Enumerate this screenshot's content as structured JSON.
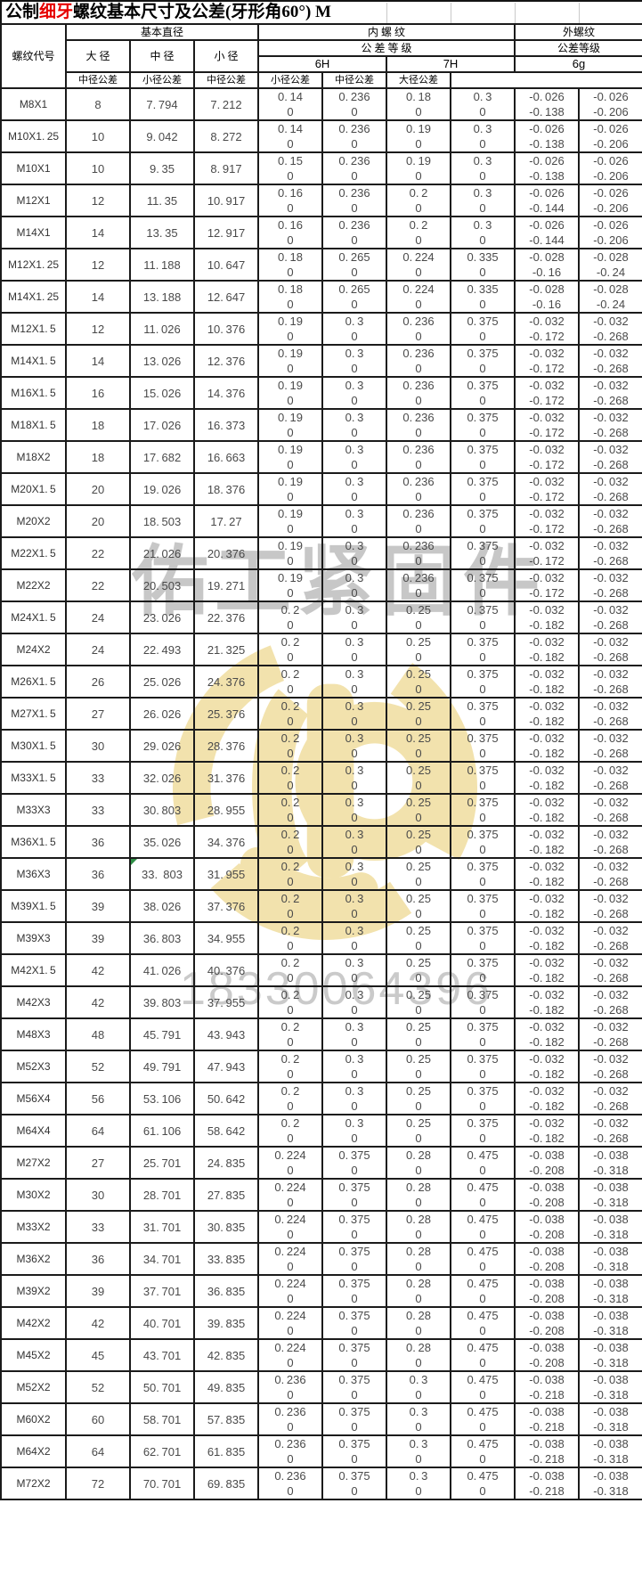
{
  "title": {
    "part1": "公制",
    "em": "细牙",
    "part2": "螺纹基本尺寸及公差(牙形角60°) M"
  },
  "watermarks": {
    "company": "佑工紧固件",
    "phone": "18330064396",
    "logo_color": "#f1dfa2"
  },
  "colors": {
    "title_highlight": "#e60000",
    "grid_line": "#1b1b1b",
    "data_text": "#4a4a4a",
    "comment_marker_green": "#2f8f46"
  },
  "header": {
    "thread_code": "螺纹代号",
    "basic_diameter": "基本直径",
    "major": "大 径",
    "pitch": "中 径",
    "minor": "小 径",
    "internal": "内 螺 纹",
    "internal_grade": "公 差 等 级",
    "h6": "6H",
    "h7": "7H",
    "external": "外螺纹",
    "external_grade": "公差等级",
    "g6": "6g",
    "pitch_tol": "中径公差",
    "minor_tol": "小径公差",
    "major_tol": "大径公差"
  },
  "table": {
    "constants": {
      "internal_lower": "0"
    },
    "special": {
      "green_marker_row": 24,
      "green_marker_col": 2
    },
    "rows": [
      [
        "M8X1",
        "8",
        "7.794",
        "7.212",
        "0.14",
        "0.236",
        "0.18",
        "0.3",
        "-0.026",
        "-0.138",
        "-0.026",
        "-0.206"
      ],
      [
        "M10X1.25",
        "10",
        "9.042",
        "8.272",
        "0.14",
        "0.236",
        "0.19",
        "0.3",
        "-0.026",
        "-0.138",
        "-0.026",
        "-0.206"
      ],
      [
        "M10X1",
        "10",
        "9.35",
        "8.917",
        "0.15",
        "0.236",
        "0.19",
        "0.3",
        "-0.026",
        "-0.138",
        "-0.026",
        "-0.206"
      ],
      [
        "M12X1",
        "12",
        "11.35",
        "10.917",
        "0.16",
        "0.236",
        "0.2",
        "0.3",
        "-0.026",
        "-0.144",
        "-0.026",
        "-0.206"
      ],
      [
        "M14X1",
        "14",
        "13.35",
        "12.917",
        "0.16",
        "0.236",
        "0.2",
        "0.3",
        "-0.026",
        "-0.144",
        "-0.026",
        "-0.206"
      ],
      [
        "M12X1.25",
        "12",
        "11.188",
        "10.647",
        "0.18",
        "0.265",
        "0.224",
        "0.335",
        "-0.028",
        "-0.16",
        "-0.028",
        "-0.24"
      ],
      [
        "M14X1.25",
        "14",
        "13.188",
        "12.647",
        "0.18",
        "0.265",
        "0.224",
        "0.335",
        "-0.028",
        "-0.16",
        "-0.028",
        "-0.24"
      ],
      [
        "M12X1.5",
        "12",
        "11.026",
        "10.376",
        "0.19",
        "0.3",
        "0.236",
        "0.375",
        "-0.032",
        "-0.172",
        "-0.032",
        "-0.268"
      ],
      [
        "M14X1.5",
        "14",
        "13.026",
        "12.376",
        "0.19",
        "0.3",
        "0.236",
        "0.375",
        "-0.032",
        "-0.172",
        "-0.032",
        "-0.268"
      ],
      [
        "M16X1.5",
        "16",
        "15.026",
        "14.376",
        "0.19",
        "0.3",
        "0.236",
        "0.375",
        "-0.032",
        "-0.172",
        "-0.032",
        "-0.268"
      ],
      [
        "M18X1.5",
        "18",
        "17.026",
        "16.373",
        "0.19",
        "0.3",
        "0.236",
        "0.375",
        "-0.032",
        "-0.172",
        "-0.032",
        "-0.268"
      ],
      [
        "M18X2",
        "18",
        "17.682",
        "16.663",
        "0.19",
        "0.3",
        "0.236",
        "0.375",
        "-0.032",
        "-0.172",
        "-0.032",
        "-0.268"
      ],
      [
        "M20X1.5",
        "20",
        "19.026",
        "18.376",
        "0.19",
        "0.3",
        "0.236",
        "0.375",
        "-0.032",
        "-0.172",
        "-0.032",
        "-0.268"
      ],
      [
        "M20X2",
        "20",
        "18.503",
        "17.27",
        "0.19",
        "0.3",
        "0.236",
        "0.375",
        "-0.032",
        "-0.172",
        "-0.032",
        "-0.268"
      ],
      [
        "M22X1.5",
        "22",
        "21.026",
        "20.376",
        "0.19",
        "0.3",
        "0.236",
        "0.375",
        "-0.032",
        "-0.172",
        "-0.032",
        "-0.268"
      ],
      [
        "M22X2",
        "22",
        "20.503",
        "19.271",
        "0.19",
        "0.3",
        "0.236",
        "0.375",
        "-0.032",
        "-0.172",
        "-0.032",
        "-0.268"
      ],
      [
        "M24X1.5",
        "24",
        "23.026",
        "22.376",
        "0.2",
        "0.3",
        "0.25",
        "0.375",
        "-0.032",
        "-0.182",
        "-0.032",
        "-0.268"
      ],
      [
        "M24X2",
        "24",
        "22.493",
        "21.325",
        "0.2",
        "0.3",
        "0.25",
        "0.375",
        "-0.032",
        "-0.182",
        "-0.032",
        "-0.268"
      ],
      [
        "M26X1.5",
        "26",
        "25.026",
        "24.376",
        "0.2",
        "0.3",
        "0.25",
        "0.375",
        "-0.032",
        "-0.182",
        "-0.032",
        "-0.268"
      ],
      [
        "M27X1.5",
        "27",
        "26.026",
        "25.376",
        "0.2",
        "0.3",
        "0.25",
        "0.375",
        "-0.032",
        "-0.182",
        "-0.032",
        "-0.268"
      ],
      [
        "M30X1.5",
        "30",
        "29.026",
        "28.376",
        "0.2",
        "0.3",
        "0.25",
        "0.375",
        "-0.032",
        "-0.182",
        "-0.032",
        "-0.268"
      ],
      [
        "M33X1.5",
        "33",
        "32.026",
        "31.376",
        "0.2",
        "0.3",
        "0.25",
        "0.375",
        "-0.032",
        "-0.182",
        "-0.032",
        "-0.268"
      ],
      [
        "M33X3",
        "33",
        "30.803",
        "28.955",
        "0.2",
        "0.3",
        "0.25",
        "0.375",
        "-0.032",
        "-0.182",
        "-0.032",
        "-0.268"
      ],
      [
        "M36X1.5",
        "36",
        "35.026",
        "34.376",
        "0.2",
        "0.3",
        "0.25",
        "0.375",
        "-0.032",
        "-0.182",
        "-0.032",
        "-0.268"
      ],
      [
        "M36X3",
        "36",
        "33. 803",
        "31.955",
        "0.2",
        "0.3",
        "0.25",
        "0.375",
        "-0.032",
        "-0.182",
        "-0.032",
        "-0.268"
      ],
      [
        "M39X1.5",
        "39",
        "38.026",
        "37.376",
        "0.2",
        "0.3",
        "0.25",
        "0.375",
        "-0.032",
        "-0.182",
        "-0.032",
        "-0.268"
      ],
      [
        "M39X3",
        "39",
        "36.803",
        "34.955",
        "0.2",
        "0.3",
        "0.25",
        "0.375",
        "-0.032",
        "-0.182",
        "-0.032",
        "-0.268"
      ],
      [
        "M42X1.5",
        "42",
        "41.026",
        "40.376",
        "0.2",
        "0.3",
        "0.25",
        "0.375",
        "-0.032",
        "-0.182",
        "-0.032",
        "-0.268"
      ],
      [
        "M42X3",
        "42",
        "39.803",
        "37.955",
        "0.2",
        "0.3",
        "0.25",
        "0.375",
        "-0.032",
        "-0.182",
        "-0.032",
        "-0.268"
      ],
      [
        "M48X3",
        "48",
        "45.791",
        "43.943",
        "0.2",
        "0.3",
        "0.25",
        "0.375",
        "-0.032",
        "-0.182",
        "-0.032",
        "-0.268"
      ],
      [
        "M52X3",
        "52",
        "49.791",
        "47.943",
        "0.2",
        "0.3",
        "0.25",
        "0.375",
        "-0.032",
        "-0.182",
        "-0.032",
        "-0.268"
      ],
      [
        "M56X4",
        "56",
        "53.106",
        "50.642",
        "0.2",
        "0.3",
        "0.25",
        "0.375",
        "-0.032",
        "-0.182",
        "-0.032",
        "-0.268"
      ],
      [
        "M64X4",
        "64",
        "61.106",
        "58.642",
        "0.2",
        "0.3",
        "0.25",
        "0.375",
        "-0.032",
        "-0.182",
        "-0.032",
        "-0.268"
      ],
      [
        "M27X2",
        "27",
        "25.701",
        "24.835",
        "0.224",
        "0.375",
        "0.28",
        "0.475",
        "-0.038",
        "-0.208",
        "-0.038",
        "-0.318"
      ],
      [
        "M30X2",
        "30",
        "28.701",
        "27.835",
        "0.224",
        "0.375",
        "0.28",
        "0.475",
        "-0.038",
        "-0.208",
        "-0.038",
        "-0.318"
      ],
      [
        "M33X2",
        "33",
        "31.701",
        "30.835",
        "0.224",
        "0.375",
        "0.28",
        "0.475",
        "-0.038",
        "-0.208",
        "-0.038",
        "-0.318"
      ],
      [
        "M36X2",
        "36",
        "34.701",
        "33.835",
        "0.224",
        "0.375",
        "0.28",
        "0.475",
        "-0.038",
        "-0.208",
        "-0.038",
        "-0.318"
      ],
      [
        "M39X2",
        "39",
        "37.701",
        "36.835",
        "0.224",
        "0.375",
        "0.28",
        "0.475",
        "-0.038",
        "-0.208",
        "-0.038",
        "-0.318"
      ],
      [
        "M42X2",
        "42",
        "40.701",
        "39.835",
        "0.224",
        "0.375",
        "0.28",
        "0.475",
        "-0.038",
        "-0.208",
        "-0.038",
        "-0.318"
      ],
      [
        "M45X2",
        "45",
        "43.701",
        "42.835",
        "0.224",
        "0.375",
        "0.28",
        "0.475",
        "-0.038",
        "-0.208",
        "-0.038",
        "-0.318"
      ],
      [
        "M52X2",
        "52",
        "50.701",
        "49.835",
        "0.236",
        "0.375",
        "0.3",
        "0.475",
        "-0.038",
        "-0.218",
        "-0.038",
        "-0.318"
      ],
      [
        "M60X2",
        "60",
        "58.701",
        "57.835",
        "0.236",
        "0.375",
        "0.3",
        "0.475",
        "-0.038",
        "-0.218",
        "-0.038",
        "-0.318"
      ],
      [
        "M64X2",
        "64",
        "62.701",
        "61.835",
        "0.236",
        "0.375",
        "0.3",
        "0.475",
        "-0.038",
        "-0.218",
        "-0.038",
        "-0.318"
      ],
      [
        "M72X2",
        "72",
        "70.701",
        "69.835",
        "0.236",
        "0.375",
        "0.3",
        "0.475",
        "-0.038",
        "-0.218",
        "-0.038",
        "-0.318"
      ]
    ]
  }
}
